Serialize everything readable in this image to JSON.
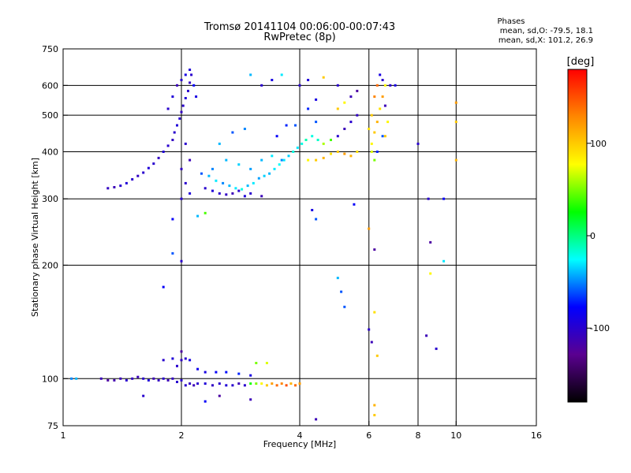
{
  "chart_data": {
    "type": "scatter",
    "title": "Tromsø 20141104 00:06:00-00:07:43",
    "subtitle": "RwPretec (8p)",
    "xlabel": "Frequency [MHz]",
    "ylabel": "Stationary phase Virtual Height [km]",
    "x_scale": "log",
    "y_scale": "log",
    "xlim": [
      1,
      16
    ],
    "ylim": [
      75,
      750
    ],
    "x_ticks": [
      1,
      2,
      4,
      6,
      8,
      10,
      16
    ],
    "x_tick_labels": [
      "1",
      "2",
      "4",
      "6",
      "8",
      "10",
      "16"
    ],
    "y_ticks": [
      75,
      100,
      200,
      300,
      400,
      500,
      600,
      750
    ],
    "y_tick_labels": [
      "75",
      "100",
      "200",
      "300",
      "400",
      "500",
      "600",
      "750"
    ],
    "grid_x": [
      2,
      4,
      6,
      8,
      10
    ],
    "grid_y": [
      100,
      200,
      300,
      400,
      500,
      600
    ],
    "stats": {
      "heading": "Phases",
      "o_line": "mean, sd,O: -79.5, 18.1",
      "x_line": "mean, sd,X: 101.2, 26.9"
    },
    "colorbar": {
      "label": "[deg]",
      "min": -180,
      "max": 180,
      "tick_values": [
        100,
        0,
        -100
      ],
      "tick_labels": [
        "100",
        "0",
        "-100"
      ],
      "stops": [
        "#ff0000",
        "#ff8800",
        "#ffff00",
        "#00ff00",
        "#00ffff",
        "#0000ff",
        "#5a0090",
        "#000000"
      ]
    },
    "series": [
      {
        "name": "",
        "points": [
          [
            1.05,
            100,
            -50
          ],
          [
            1.08,
            100,
            -40
          ],
          [
            1.25,
            100,
            -110
          ],
          [
            1.3,
            99,
            -120
          ],
          [
            1.35,
            99,
            -115
          ],
          [
            1.4,
            100,
            -110
          ],
          [
            1.45,
            99,
            -100
          ],
          [
            1.5,
            100,
            -105
          ],
          [
            1.55,
            101,
            -110
          ],
          [
            1.6,
            100,
            -100
          ],
          [
            1.65,
            99,
            -95
          ],
          [
            1.7,
            100,
            -110
          ],
          [
            1.75,
            99,
            -105
          ],
          [
            1.8,
            100,
            -100
          ],
          [
            1.85,
            99,
            -110
          ],
          [
            1.9,
            100,
            -105
          ],
          [
            1.95,
            98,
            -100
          ],
          [
            2.0,
            99,
            -100
          ],
          [
            2.05,
            96,
            -100
          ],
          [
            2.1,
            97,
            -105
          ],
          [
            2.15,
            96,
            -110
          ],
          [
            2.2,
            97,
            -100
          ],
          [
            2.3,
            97,
            -95
          ],
          [
            2.4,
            96,
            -105
          ],
          [
            2.5,
            97,
            -100
          ],
          [
            2.6,
            96,
            -95
          ],
          [
            2.7,
            96,
            -100
          ],
          [
            2.8,
            97,
            -110
          ],
          [
            2.9,
            96,
            -100
          ],
          [
            3.0,
            97,
            30
          ],
          [
            3.1,
            97,
            50
          ],
          [
            3.2,
            97,
            80
          ],
          [
            3.3,
            96,
            100
          ],
          [
            3.4,
            97,
            120
          ],
          [
            3.5,
            96,
            140
          ],
          [
            3.6,
            97,
            130
          ],
          [
            3.7,
            96,
            150
          ],
          [
            3.8,
            97,
            110
          ],
          [
            3.9,
            96,
            140
          ],
          [
            4.0,
            97,
            120
          ],
          [
            1.8,
            112,
            -100
          ],
          [
            1.9,
            113,
            -95
          ],
          [
            2.0,
            112,
            -105
          ],
          [
            2.05,
            113,
            -100
          ],
          [
            2.1,
            112,
            -90
          ],
          [
            2.2,
            106,
            -85
          ],
          [
            2.3,
            104,
            -90
          ],
          [
            2.45,
            104,
            -80
          ],
          [
            2.6,
            104,
            -75
          ],
          [
            2.8,
            103,
            -70
          ],
          [
            3.0,
            102,
            -90
          ],
          [
            3.1,
            110,
            50
          ],
          [
            3.3,
            110,
            70
          ],
          [
            1.95,
            108,
            -100
          ],
          [
            2.0,
            118,
            -120
          ],
          [
            1.3,
            320,
            -105
          ],
          [
            1.35,
            322,
            -110
          ],
          [
            1.4,
            325,
            -100
          ],
          [
            1.45,
            330,
            -95
          ],
          [
            1.5,
            338,
            -100
          ],
          [
            1.55,
            345,
            -105
          ],
          [
            1.6,
            352,
            -100
          ],
          [
            1.65,
            362,
            -95
          ],
          [
            1.7,
            372,
            -100
          ],
          [
            1.75,
            385,
            -105
          ],
          [
            1.8,
            400,
            -95
          ],
          [
            1.85,
            415,
            -100
          ],
          [
            1.9,
            430,
            -105
          ],
          [
            1.92,
            450,
            -100
          ],
          [
            1.95,
            470,
            -95
          ],
          [
            1.98,
            490,
            -100
          ],
          [
            2.0,
            510,
            -105
          ],
          [
            2.02,
            530,
            -100
          ],
          [
            2.05,
            555,
            -95
          ],
          [
            2.08,
            580,
            -100
          ],
          [
            2.1,
            610,
            -105
          ],
          [
            2.12,
            640,
            -100
          ],
          [
            2.1,
            660,
            -95
          ],
          [
            2.05,
            640,
            -90
          ],
          [
            2.0,
            620,
            -100
          ],
          [
            1.95,
            600,
            -110
          ],
          [
            1.9,
            560,
            -95
          ],
          [
            1.85,
            520,
            -100
          ],
          [
            2.15,
            600,
            -80
          ],
          [
            2.18,
            560,
            -90
          ],
          [
            2.05,
            420,
            -100
          ],
          [
            2.1,
            380,
            -110
          ],
          [
            2.0,
            360,
            -105
          ],
          [
            2.05,
            330,
            -100
          ],
          [
            2.1,
            310,
            -95
          ],
          [
            2.0,
            300,
            -100
          ],
          [
            2.25,
            350,
            -60
          ],
          [
            2.35,
            345,
            -40
          ],
          [
            2.45,
            335,
            -30
          ],
          [
            2.55,
            330,
            -50
          ],
          [
            2.65,
            325,
            -40
          ],
          [
            2.75,
            320,
            -30
          ],
          [
            2.85,
            318,
            -20
          ],
          [
            2.95,
            325,
            -40
          ],
          [
            3.05,
            330,
            -30
          ],
          [
            3.15,
            340,
            -45
          ],
          [
            3.25,
            345,
            -35
          ],
          [
            3.35,
            350,
            -40
          ],
          [
            3.45,
            360,
            -30
          ],
          [
            3.55,
            370,
            -25
          ],
          [
            3.65,
            380,
            -30
          ],
          [
            3.75,
            390,
            -35
          ],
          [
            3.85,
            400,
            -20
          ],
          [
            3.95,
            410,
            -30
          ],
          [
            4.05,
            420,
            -20
          ],
          [
            4.15,
            430,
            -10
          ],
          [
            4.3,
            440,
            -20
          ],
          [
            4.45,
            430,
            -15
          ],
          [
            2.3,
            320,
            -100
          ],
          [
            2.4,
            315,
            -95
          ],
          [
            2.5,
            310,
            -100
          ],
          [
            2.6,
            308,
            -105
          ],
          [
            2.7,
            310,
            -110
          ],
          [
            2.8,
            315,
            -100
          ],
          [
            2.9,
            305,
            -95
          ],
          [
            3.0,
            310,
            -100
          ],
          [
            3.2,
            305,
            -110
          ],
          [
            2.4,
            360,
            -50
          ],
          [
            2.6,
            380,
            -40
          ],
          [
            2.8,
            370,
            -35
          ],
          [
            3.0,
            360,
            -45
          ],
          [
            3.2,
            380,
            -40
          ],
          [
            3.4,
            390,
            -30
          ],
          [
            3.6,
            380,
            -50
          ],
          [
            4.2,
            380,
            80
          ],
          [
            4.4,
            380,
            100
          ],
          [
            4.6,
            385,
            110
          ],
          [
            4.8,
            395,
            90
          ],
          [
            5.0,
            400,
            100
          ],
          [
            5.2,
            395,
            120
          ],
          [
            5.4,
            390,
            110
          ],
          [
            5.6,
            400,
            90
          ],
          [
            4.6,
            420,
            60
          ],
          [
            4.8,
            430,
            40
          ],
          [
            5.0,
            440,
            -100
          ],
          [
            5.2,
            460,
            -110
          ],
          [
            5.4,
            480,
            -100
          ],
          [
            5.6,
            500,
            -105
          ],
          [
            5.0,
            520,
            100
          ],
          [
            5.2,
            540,
            80
          ],
          [
            5.4,
            560,
            -110
          ],
          [
            5.6,
            580,
            -120
          ],
          [
            5.0,
            600,
            -100
          ],
          [
            4.4,
            550,
            -90
          ],
          [
            4.2,
            620,
            -95
          ],
          [
            4.6,
            630,
            100
          ],
          [
            4.4,
            480,
            -60
          ],
          [
            4.2,
            520,
            -70
          ],
          [
            4.0,
            600,
            -100
          ],
          [
            3.9,
            470,
            -60
          ],
          [
            3.7,
            470,
            -70
          ],
          [
            3.5,
            440,
            -80
          ],
          [
            3.6,
            640,
            -30
          ],
          [
            3.4,
            620,
            -90
          ],
          [
            3.2,
            600,
            -100
          ],
          [
            3.0,
            640,
            -40
          ],
          [
            2.9,
            460,
            -50
          ],
          [
            2.7,
            450,
            -60
          ],
          [
            2.5,
            420,
            -40
          ],
          [
            6.1,
            420,
            80
          ],
          [
            6.2,
            450,
            100
          ],
          [
            6.3,
            480,
            110
          ],
          [
            6.4,
            520,
            90
          ],
          [
            6.5,
            560,
            120
          ],
          [
            6.6,
            600,
            80
          ],
          [
            6.5,
            620,
            -100
          ],
          [
            6.4,
            640,
            -90
          ],
          [
            6.3,
            600,
            140
          ],
          [
            6.2,
            560,
            130
          ],
          [
            6.1,
            500,
            100
          ],
          [
            6.0,
            460,
            90
          ],
          [
            6.6,
            530,
            -110
          ],
          [
            6.7,
            480,
            80
          ],
          [
            6.8,
            600,
            -100
          ],
          [
            7.0,
            600,
            -90
          ],
          [
            6.5,
            440,
            -60
          ],
          [
            6.3,
            400,
            -70
          ],
          [
            6.2,
            380,
            50
          ],
          [
            6.1,
            400,
            70
          ],
          [
            6.6,
            440,
            100
          ],
          [
            4.3,
            280,
            -90
          ],
          [
            4.4,
            265,
            -60
          ],
          [
            6.0,
            250,
            120
          ],
          [
            6.2,
            220,
            -120
          ],
          [
            5.5,
            290,
            -80
          ],
          [
            5.1,
            170,
            -60
          ],
          [
            5.0,
            185,
            -40
          ],
          [
            5.2,
            155,
            -60
          ],
          [
            6.2,
            150,
            90
          ],
          [
            6.0,
            135,
            -100
          ],
          [
            6.3,
            115,
            100
          ],
          [
            6.1,
            125,
            -110
          ],
          [
            6.2,
            85,
            110
          ],
          [
            6.2,
            80,
            100
          ],
          [
            4.4,
            78,
            -110
          ],
          [
            8.0,
            420,
            -100
          ],
          [
            8.5,
            300,
            -100
          ],
          [
            8.6,
            230,
            -120
          ],
          [
            8.6,
            190,
            80
          ],
          [
            9.3,
            205,
            -30
          ],
          [
            8.4,
            130,
            -110
          ],
          [
            8.9,
            120,
            -100
          ],
          [
            10.0,
            540,
            120
          ],
          [
            10.0,
            480,
            100
          ],
          [
            10.0,
            380,
            110
          ],
          [
            9.3,
            300,
            -80
          ],
          [
            1.9,
            215,
            -60
          ],
          [
            2.0,
            205,
            -100
          ],
          [
            1.8,
            175,
            -80
          ],
          [
            1.6,
            90,
            -100
          ],
          [
            2.3,
            87,
            -80
          ],
          [
            2.5,
            90,
            -120
          ],
          [
            3.0,
            88,
            -110
          ],
          [
            1.9,
            265,
            -80
          ],
          [
            2.2,
            270,
            -40
          ],
          [
            2.3,
            275,
            40
          ]
        ]
      }
    ]
  }
}
